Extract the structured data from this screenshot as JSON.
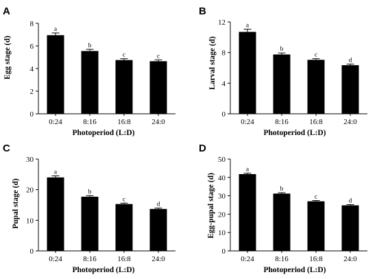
{
  "chart_data": [
    {
      "type": "bar",
      "panel": "A",
      "categories": [
        "0:24",
        "8:16",
        "16:8",
        "24:0"
      ],
      "values": [
        6.95,
        5.55,
        4.75,
        4.65
      ],
      "errors": [
        0.2,
        0.15,
        0.12,
        0.12
      ],
      "labels": [
        "a",
        "b",
        "c",
        "c"
      ],
      "xlabel": "Photoperiod (L:D)",
      "ylabel": "Egg stage (d)",
      "ylim": [
        0,
        8
      ],
      "yticks": [
        0,
        2,
        4,
        6,
        8
      ],
      "color": "#000000"
    },
    {
      "type": "bar",
      "panel": "B",
      "categories": [
        "0:24",
        "8:16",
        "16:8",
        "24:0"
      ],
      "values": [
        10.7,
        7.75,
        7.05,
        6.35
      ],
      "errors": [
        0.35,
        0.2,
        0.15,
        0.15
      ],
      "labels": [
        "a",
        "b",
        "c",
        "d"
      ],
      "xlabel": "Photoperiod (L:D)",
      "ylabel": "Larval stage (d)",
      "ylim": [
        0,
        12
      ],
      "yticks": [
        0,
        4,
        8,
        12
      ],
      "color": "#000000"
    },
    {
      "type": "bar",
      "panel": "C",
      "categories": [
        "0:24",
        "8:16",
        "16:8",
        "24:0"
      ],
      "values": [
        24.0,
        17.7,
        15.3,
        13.7
      ],
      "errors": [
        0.5,
        0.35,
        0.3,
        0.3
      ],
      "labels": [
        "a",
        "b",
        "c",
        "d"
      ],
      "xlabel": "Photoperiod (L:D)",
      "ylabel": "Pupal stage (d)",
      "ylim": [
        0,
        30
      ],
      "yticks": [
        0,
        10,
        20,
        30
      ],
      "color": "#000000"
    },
    {
      "type": "bar",
      "panel": "D",
      "categories": [
        "0:24",
        "8:16",
        "16:8",
        "24:0"
      ],
      "values": [
        41.8,
        31.2,
        27.0,
        24.8
      ],
      "errors": [
        0.5,
        0.5,
        0.4,
        0.4
      ],
      "labels": [
        "a",
        "b",
        "c",
        "d"
      ],
      "xlabel": "Photoperiod (L:D)",
      "ylabel": "Egg-pupal stage (d)",
      "ylim": [
        0,
        50
      ],
      "yticks": [
        0,
        10,
        20,
        30,
        40,
        50
      ],
      "color": "#000000"
    }
  ]
}
